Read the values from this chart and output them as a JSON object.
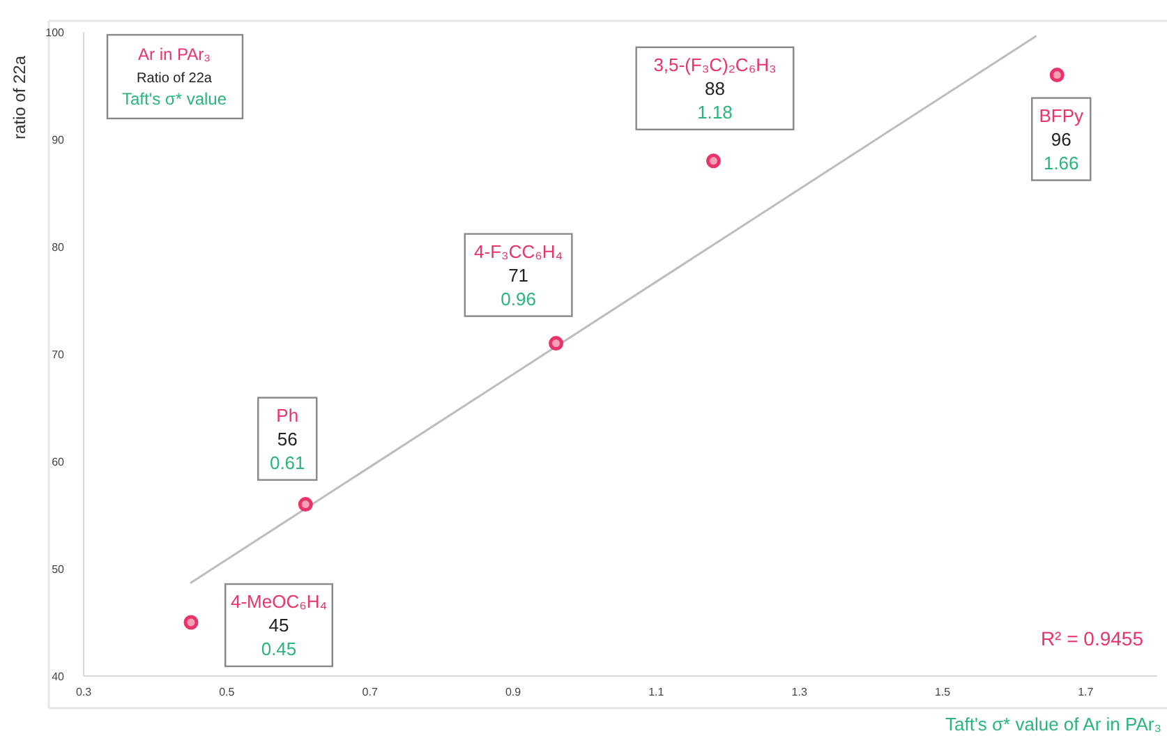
{
  "chart_data": {
    "type": "scatter",
    "xlabel": "Taft's σ* value of Ar in PAr₃",
    "ylabel": "ratio of 22a",
    "xlim": [
      0.3,
      1.8
    ],
    "xticks": [
      0.3,
      0.5,
      0.7,
      0.9,
      1.1,
      1.3,
      1.5,
      1.7
    ],
    "ylim": [
      40,
      100
    ],
    "yticks": [
      40,
      50,
      60,
      70,
      80,
      90,
      100
    ],
    "grid": false,
    "series": [
      {
        "type": "scatter",
        "color": "#e8336b",
        "marker": "circle",
        "x": [
          0.45,
          0.61,
          0.96,
          1.18,
          1.66
        ],
        "values": [
          45,
          56,
          71,
          88,
          96
        ]
      },
      {
        "type": "line",
        "color": "#bdbdbd",
        "marker": "none",
        "x": [
          0.45,
          1.63
        ],
        "values": [
          48.7,
          99.6
        ]
      }
    ],
    "annotations": [
      "Ar in PAr₃",
      "Ratio of 22a",
      "Taft's σ* value",
      "R² = 0.9455",
      "4-MeOC₆H₄",
      "45",
      "0.45",
      "Ph",
      "56",
      "0.61",
      "4-F₃CC₆H₄",
      "71",
      "0.96",
      "3,5-(F₃C)₂C₆H₃",
      "88",
      "1.18",
      "BFPy",
      "96",
      "1.66"
    ]
  }
}
